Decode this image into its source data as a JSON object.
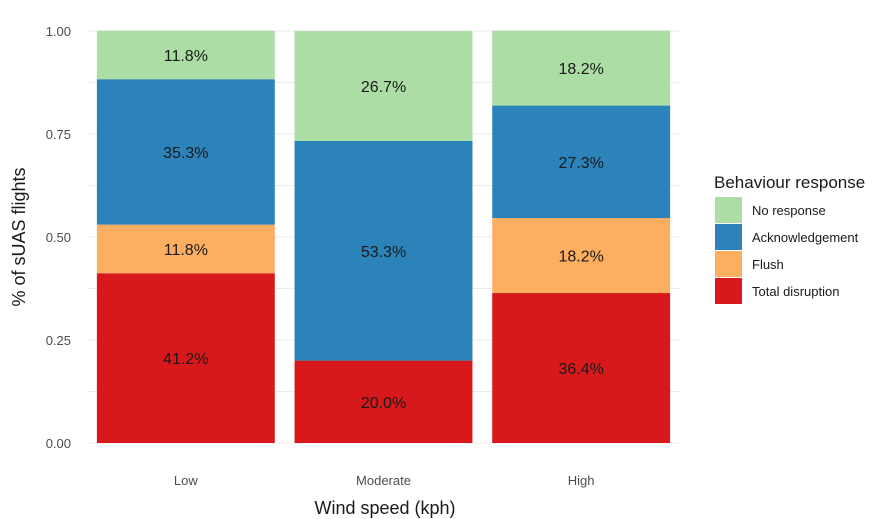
{
  "chart_data": {
    "type": "bar",
    "stacked": true,
    "xlabel": "Wind speed (kph)",
    "ylabel": "% of sUAS flights",
    "ylim": [
      0,
      1
    ],
    "yticks": [
      "0.00",
      "0.25",
      "0.50",
      "0.75",
      "1.00"
    ],
    "categories": [
      "Low",
      "Moderate",
      "High"
    ],
    "legend_title": "Behaviour response",
    "legend_position": "right",
    "grid": true,
    "series": [
      {
        "name": "Total disruption",
        "color": "#d7191c",
        "values": [
          0.412,
          0.2,
          0.364
        ],
        "labels": [
          "41.2%",
          "20.0%",
          "36.4%"
        ]
      },
      {
        "name": "Flush",
        "color": "#fdae61",
        "values": [
          0.118,
          0.0,
          0.182
        ],
        "labels": [
          "11.8%",
          "",
          "18.2%"
        ]
      },
      {
        "name": "Acknowledgement",
        "color": "#2b83ba",
        "values": [
          0.353,
          0.533,
          0.273
        ],
        "labels": [
          "35.3%",
          "53.3%",
          "27.3%"
        ]
      },
      {
        "name": "No response",
        "color": "#abdda4",
        "values": [
          0.118,
          0.267,
          0.182
        ],
        "labels": [
          "11.8%",
          "26.7%",
          "18.2%"
        ]
      }
    ],
    "legend_order": [
      "No response",
      "Acknowledgement",
      "Flush",
      "Total disruption"
    ]
  }
}
